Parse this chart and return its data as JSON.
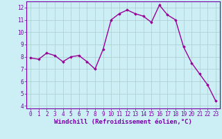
{
  "x": [
    0,
    1,
    2,
    3,
    4,
    5,
    6,
    7,
    8,
    9,
    10,
    11,
    12,
    13,
    14,
    15,
    16,
    17,
    18,
    19,
    20,
    21,
    22,
    23
  ],
  "y": [
    7.9,
    7.8,
    8.3,
    8.1,
    7.6,
    8.0,
    8.1,
    7.6,
    7.0,
    8.6,
    11.0,
    11.5,
    11.8,
    11.5,
    11.3,
    10.8,
    12.2,
    11.4,
    11.0,
    8.8,
    7.5,
    6.6,
    5.7,
    4.4
  ],
  "line_color": "#990099",
  "marker": "D",
  "marker_size": 1.8,
  "bg_color": "#cceef5",
  "grid_color": "#aacccc",
  "xlabel": "Windchill (Refroidissement éolien,°C)",
  "ylim": [
    3.8,
    12.5
  ],
  "xlim": [
    -0.5,
    23.5
  ],
  "yticks": [
    4,
    5,
    6,
    7,
    8,
    9,
    10,
    11,
    12
  ],
  "xticks": [
    0,
    1,
    2,
    3,
    4,
    5,
    6,
    7,
    8,
    9,
    10,
    11,
    12,
    13,
    14,
    15,
    16,
    17,
    18,
    19,
    20,
    21,
    22,
    23
  ],
  "tick_fontsize": 5.5,
  "xlabel_fontsize": 6.5,
  "spine_color": "#7700aa",
  "linewidth": 1.0
}
